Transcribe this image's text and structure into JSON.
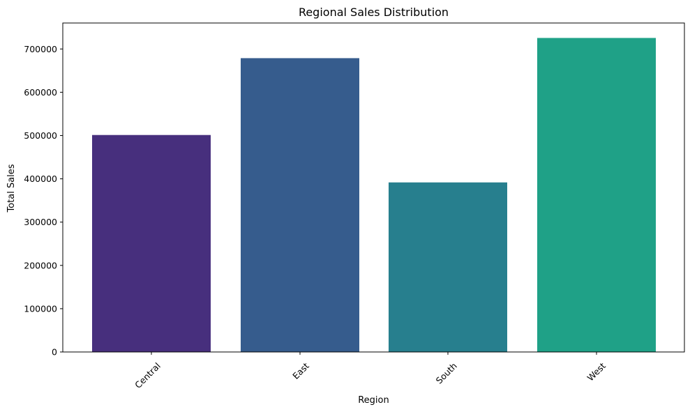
{
  "chart_data": {
    "type": "bar",
    "title": "Regional Sales Distribution",
    "xlabel": "Region",
    "ylabel": "Total Sales",
    "categories": [
      "Central",
      "East",
      "South",
      "West"
    ],
    "values": [
      501240,
      678781,
      391722,
      725458
    ],
    "colors": [
      "#472f7d",
      "#365c8d",
      "#277f8e",
      "#1fa187"
    ],
    "ylim": [
      0,
      760000
    ],
    "yticks": [
      0,
      100000,
      200000,
      300000,
      400000,
      500000,
      600000,
      700000
    ],
    "ytick_labels": [
      "0",
      "100000",
      "200000",
      "300000",
      "400000",
      "500000",
      "600000",
      "700000"
    ],
    "xtick_rotation_deg": 45,
    "grid": false,
    "legend": "none"
  }
}
